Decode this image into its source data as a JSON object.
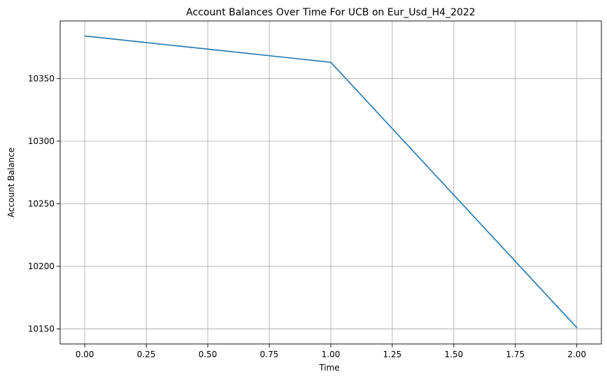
{
  "chart_data": {
    "type": "line",
    "title": "Account Balances Over Time For UCB on Eur_Usd_H4_2022",
    "xlabel": "Time",
    "ylabel": "Account Balance",
    "x": [
      0,
      1,
      2
    ],
    "series": [
      {
        "values": [
          10384,
          10363,
          10151
        ],
        "color": "#1f77b4"
      }
    ],
    "xlim": [
      -0.1,
      2.1
    ],
    "ylim": [
      10138,
      10396
    ],
    "xticks": [
      0.0,
      0.25,
      0.5,
      0.75,
      1.0,
      1.25,
      1.5,
      1.75,
      2.0
    ],
    "xtick_labels": [
      "0.00",
      "0.25",
      "0.50",
      "0.75",
      "1.00",
      "1.25",
      "1.50",
      "1.75",
      "2.00"
    ],
    "yticks": [
      10150,
      10200,
      10250,
      10300,
      10350
    ],
    "ytick_labels": [
      "10150",
      "10200",
      "10250",
      "10300",
      "10350"
    ],
    "grid": true
  }
}
